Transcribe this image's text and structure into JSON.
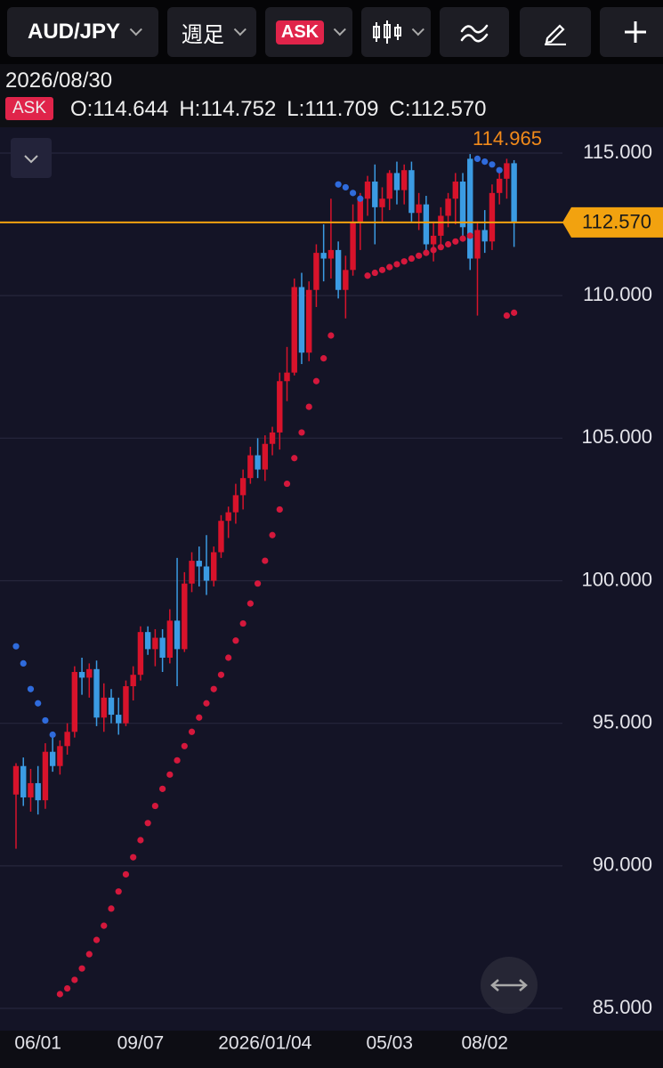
{
  "toolbar": {
    "symbol": "AUD/JPY",
    "period": "週足",
    "price_type": "ASK"
  },
  "header": {
    "date": "2026/08/30",
    "price_type": "ASK",
    "ohlc": [
      "O:114.644",
      "H:114.752",
      "L:111.709",
      "C:112.570"
    ]
  },
  "chart_data": {
    "type": "candlestick",
    "categories": [
      null,
      null,
      null,
      "06/01",
      null,
      null,
      null,
      null,
      null,
      null,
      null,
      null,
      null,
      null,
      null,
      null,
      null,
      "09/07",
      null,
      null,
      null,
      null,
      null,
      null,
      null,
      null,
      null,
      null,
      null,
      null,
      null,
      null,
      null,
      null,
      "2026/01/04",
      null,
      null,
      null,
      null,
      null,
      null,
      null,
      null,
      null,
      null,
      null,
      null,
      null,
      null,
      null,
      null,
      "05/03",
      null,
      null,
      null,
      null,
      null,
      null,
      null,
      null,
      null,
      null,
      null,
      null,
      "08/02",
      null,
      null,
      null,
      null
    ],
    "open": [
      92.5,
      93.5,
      92.4,
      92.9,
      92.3,
      94.0,
      93.5,
      94.2,
      94.7,
      96.8,
      96.6,
      96.9,
      95.2,
      95.9,
      95.3,
      95.0,
      96.3,
      96.7,
      98.2,
      97.6,
      98.0,
      97.3,
      98.6,
      97.6,
      99.9,
      100.7,
      100.5,
      100.0,
      101.0,
      102.1,
      102.4,
      103.0,
      103.6,
      104.4,
      103.9,
      104.8,
      105.2,
      107.0,
      107.3,
      110.3,
      108.0,
      110.2,
      111.5,
      111.3,
      111.6,
      110.2,
      110.9,
      112.6,
      113.4,
      114.0,
      113.1,
      113.4,
      114.3,
      113.7,
      114.4,
      112.9,
      113.2,
      111.8,
      112.1,
      112.8,
      113.4,
      114.0,
      114.8,
      111.3,
      112.3,
      111.9,
      113.6,
      114.1,
      114.644
    ],
    "high": [
      93.6,
      93.8,
      93.4,
      93.5,
      94.3,
      94.6,
      94.4,
      95.0,
      97.0,
      97.3,
      97.1,
      97.2,
      96.4,
      96.2,
      95.9,
      96.5,
      97.0,
      98.4,
      98.4,
      98.3,
      98.3,
      99.0,
      100.8,
      100.3,
      101.0,
      101.2,
      101.6,
      101.2,
      102.3,
      102.6,
      103.4,
      103.9,
      104.7,
      105.0,
      105.1,
      105.4,
      107.3,
      108.2,
      110.6,
      110.8,
      110.5,
      111.8,
      112.5,
      113.4,
      111.9,
      111.4,
      113.2,
      113.6,
      114.2,
      114.6,
      113.8,
      114.4,
      114.7,
      114.6,
      114.7,
      113.6,
      113.5,
      112.6,
      113.1,
      113.6,
      114.3,
      114.3,
      114.965,
      112.6,
      113.0,
      113.9,
      114.5,
      114.8,
      114.752
    ],
    "low": [
      90.6,
      92.1,
      91.9,
      91.8,
      92.0,
      93.3,
      93.2,
      93.9,
      94.5,
      96.0,
      95.9,
      94.9,
      94.7,
      95.0,
      94.6,
      94.9,
      95.8,
      96.5,
      97.4,
      97.0,
      96.8,
      97.1,
      96.3,
      97.5,
      99.6,
      99.8,
      99.5,
      99.8,
      100.8,
      101.5,
      102.0,
      102.5,
      103.4,
      103.6,
      103.5,
      104.4,
      104.6,
      106.3,
      107.2,
      107.6,
      107.7,
      109.6,
      110.5,
      110.6,
      109.9,
      109.2,
      110.7,
      111.6,
      112.8,
      111.8,
      112.6,
      113.0,
      113.2,
      113.2,
      112.6,
      112.3,
      111.4,
      111.2,
      111.7,
      112.4,
      112.5,
      112.0,
      110.9,
      109.3,
      111.5,
      111.6,
      113.2,
      113.4,
      111.709
    ],
    "close": [
      93.5,
      92.4,
      92.9,
      92.3,
      94.0,
      93.5,
      94.2,
      94.7,
      96.8,
      96.6,
      96.9,
      95.2,
      95.9,
      95.3,
      95.0,
      96.3,
      96.7,
      98.2,
      97.6,
      98.0,
      97.3,
      98.6,
      97.6,
      99.9,
      100.7,
      100.5,
      100.0,
      101.0,
      102.1,
      102.4,
      103.0,
      103.6,
      104.4,
      103.9,
      104.8,
      105.2,
      107.0,
      107.3,
      110.3,
      108.0,
      110.2,
      111.5,
      111.3,
      111.6,
      110.2,
      110.9,
      112.6,
      113.4,
      114.0,
      113.1,
      113.4,
      114.3,
      113.7,
      114.4,
      112.9,
      113.2,
      111.8,
      112.1,
      112.8,
      113.4,
      114.0,
      112.4,
      111.3,
      112.3,
      111.9,
      113.6,
      114.1,
      114.644,
      112.57
    ],
    "up_color": "#d8132b",
    "down_color": "#3b9be3",
    "series": [
      {
        "name": "SAR",
        "color": "#2f6bdc",
        "values": [
          97.7,
          97.1,
          96.2,
          95.7,
          95.1,
          94.6,
          null,
          null,
          null,
          null,
          null,
          null,
          null,
          null,
          null,
          null,
          null,
          null,
          null,
          null,
          null,
          null,
          null,
          null,
          null,
          null,
          null,
          null,
          null,
          null,
          null,
          null,
          null,
          null,
          null,
          null,
          null,
          null,
          null,
          null,
          null,
          null,
          null,
          null,
          113.9,
          113.8,
          113.6,
          113.4,
          null,
          null,
          null,
          null,
          null,
          null,
          null,
          null,
          null,
          null,
          null,
          null,
          null,
          null,
          null,
          114.8,
          114.7,
          114.6,
          114.4,
          null,
          null
        ]
      },
      {
        "name": "SAR",
        "color": "#d4183c",
        "values": [
          null,
          null,
          null,
          null,
          null,
          null,
          85.5,
          85.7,
          86.0,
          86.4,
          86.9,
          87.4,
          87.9,
          88.5,
          89.1,
          89.7,
          90.3,
          90.9,
          91.5,
          92.1,
          92.7,
          93.2,
          93.7,
          94.2,
          94.7,
          95.2,
          95.7,
          96.2,
          96.7,
          97.3,
          97.9,
          98.5,
          99.2,
          99.9,
          100.7,
          101.6,
          102.5,
          103.4,
          104.3,
          105.2,
          106.1,
          107.0,
          107.8,
          108.6,
          null,
          null,
          null,
          null,
          110.7,
          110.8,
          110.9,
          111.0,
          111.1,
          111.2,
          111.3,
          111.4,
          111.5,
          111.6,
          111.7,
          111.8,
          111.9,
          112.0,
          112.1,
          null,
          null,
          null,
          null,
          109.3,
          109.4
        ]
      }
    ],
    "ylim": [
      84.22,
      115.905
    ],
    "yticks": [
      {
        "value": 85,
        "label": "85.000"
      },
      {
        "value": 90,
        "label": "90.000"
      },
      {
        "value": 95,
        "label": "95.000"
      },
      {
        "value": 100,
        "label": "100.000"
      },
      {
        "value": 105,
        "label": "105.000"
      },
      {
        "value": 110,
        "label": "110.000"
      },
      {
        "value": 115,
        "label": "115.000"
      }
    ],
    "grid": true,
    "current_price": {
      "value": 112.57,
      "label": "112.570",
      "color": "#f2a20f"
    },
    "high_marker": {
      "value": 114.965,
      "label": "114.965",
      "color": "#f28a1a"
    }
  }
}
